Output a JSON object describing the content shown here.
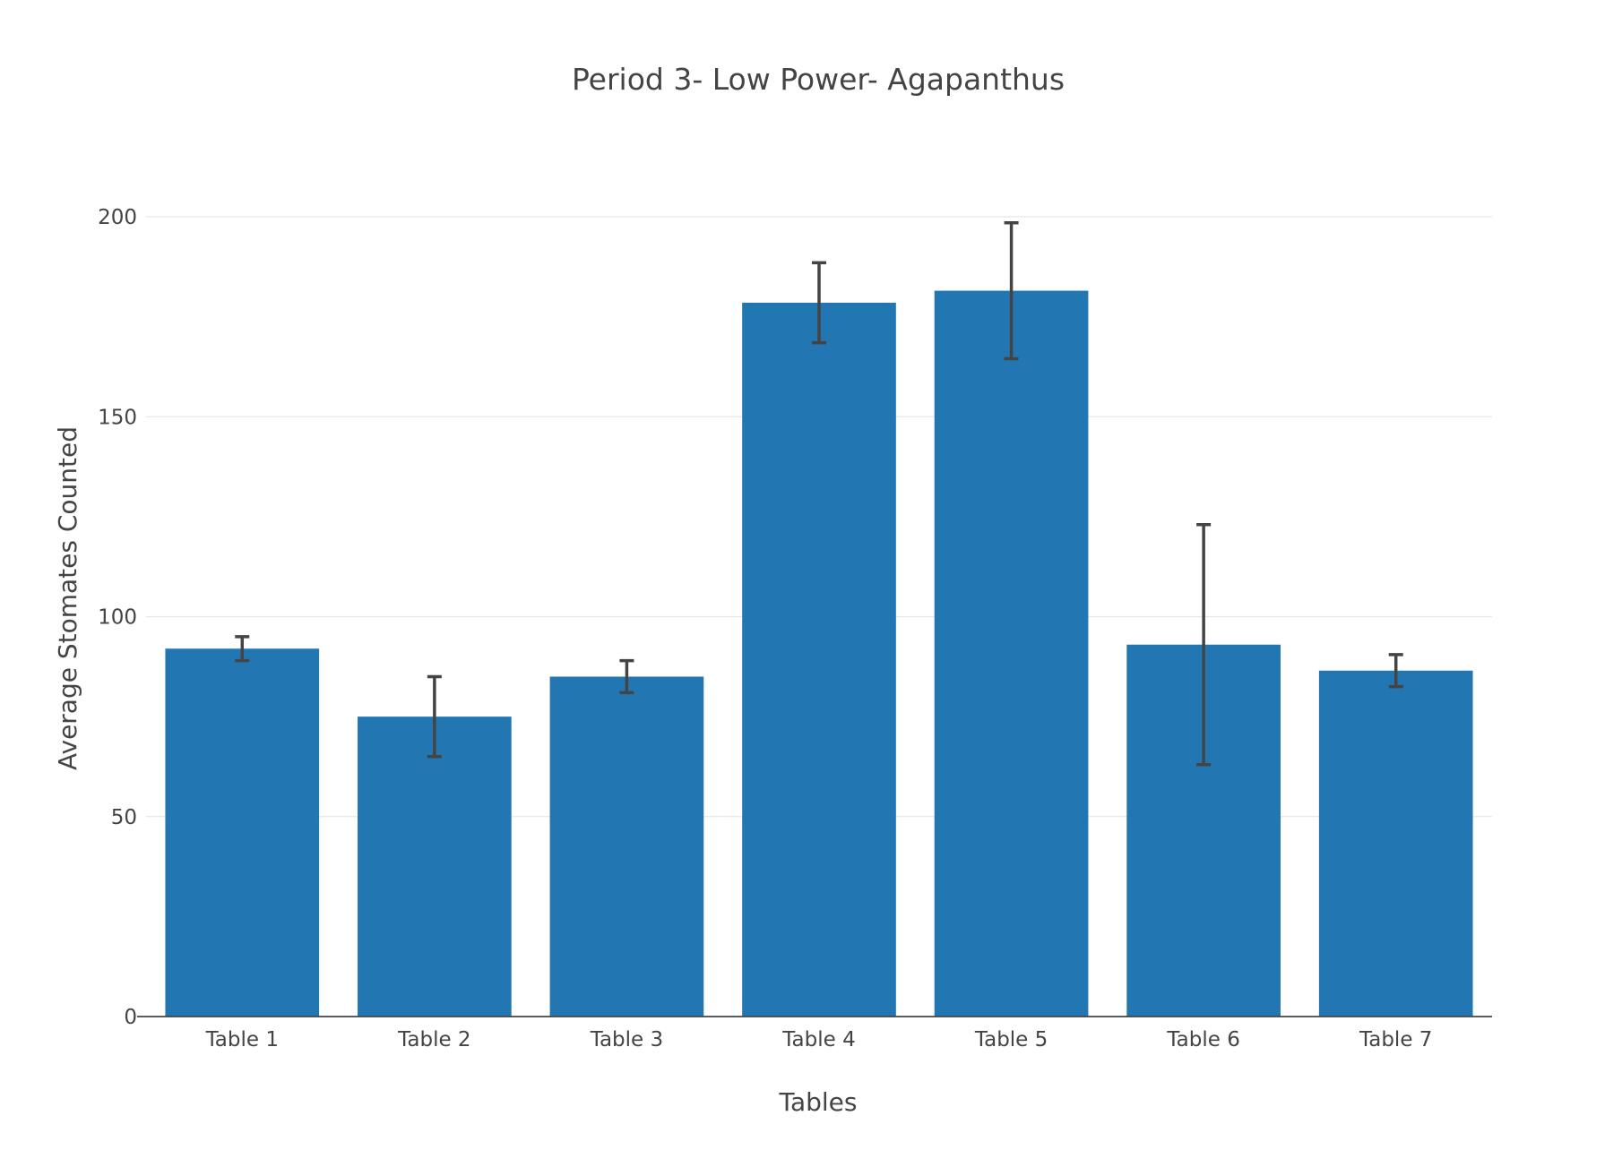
{
  "chart_data": {
    "type": "bar",
    "title": "Period 3- Low Power- Agapanthus",
    "xlabel": "Tables",
    "ylabel": "Average Stomates Counted",
    "categories": [
      "Table 1",
      "Table 2",
      "Table 3",
      "Table 4",
      "Table 5",
      "Table 6",
      "Table 7"
    ],
    "values": [
      92,
      75,
      85,
      178.5,
      181.5,
      93,
      86.5
    ],
    "error_bars": [
      {
        "low": 89,
        "high": 95
      },
      {
        "low": 65,
        "high": 85
      },
      {
        "low": 81,
        "high": 89
      },
      {
        "low": 168.5,
        "high": 188.5
      },
      {
        "low": 164.5,
        "high": 198.5
      },
      {
        "low": 63,
        "high": 123
      },
      {
        "low": 82.5,
        "high": 90.5
      }
    ],
    "ylim": [
      0,
      200
    ],
    "yticks": [
      0,
      50,
      100,
      150,
      200
    ],
    "grid": true,
    "legend": "none",
    "bar_color": "#2277b3",
    "error_color": "#444444"
  }
}
